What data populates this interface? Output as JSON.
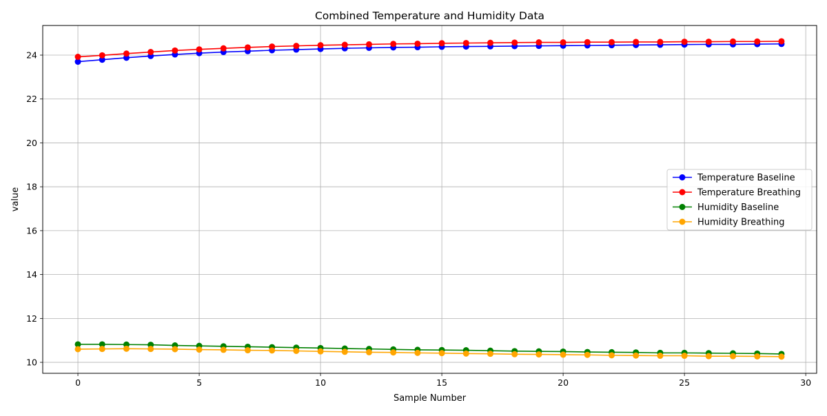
{
  "chart_data": {
    "type": "line",
    "title": "Combined Temperature and Humidity Data",
    "xlabel": "Sample Number",
    "ylabel": "value",
    "xlim": [
      -1.45,
      30.45
    ],
    "ylim": [
      9.5,
      25.35
    ],
    "xticks": [
      0,
      5,
      10,
      15,
      20,
      25,
      30
    ],
    "yticks": [
      10,
      12,
      14,
      16,
      18,
      20,
      22,
      24
    ],
    "grid": true,
    "legend_position": "center-right",
    "x": [
      0,
      1,
      2,
      3,
      4,
      5,
      6,
      7,
      8,
      9,
      10,
      11,
      12,
      13,
      14,
      15,
      16,
      17,
      18,
      19,
      20,
      21,
      22,
      23,
      24,
      25,
      26,
      27,
      28,
      29
    ],
    "series": [
      {
        "name": "Temperature Baseline",
        "color": "#0000ff",
        "values": [
          23.7,
          23.79,
          23.88,
          23.96,
          24.03,
          24.09,
          24.14,
          24.18,
          24.22,
          24.25,
          24.28,
          24.31,
          24.33,
          24.35,
          24.36,
          24.38,
          24.39,
          24.4,
          24.41,
          24.42,
          24.43,
          24.44,
          24.45,
          24.46,
          24.47,
          24.48,
          24.49,
          24.49,
          24.5,
          24.51
        ]
      },
      {
        "name": "Temperature Breathing",
        "color": "#ff0000",
        "values": [
          23.92,
          23.99,
          24.07,
          24.14,
          24.21,
          24.26,
          24.31,
          24.35,
          24.39,
          24.42,
          24.45,
          24.47,
          24.49,
          24.51,
          24.52,
          24.54,
          24.55,
          24.56,
          24.57,
          24.58,
          24.58,
          24.59,
          24.59,
          24.6,
          24.6,
          24.61,
          24.61,
          24.62,
          24.62,
          24.63
        ]
      },
      {
        "name": "Humidity Baseline",
        "color": "#008000",
        "values": [
          10.82,
          10.82,
          10.81,
          10.8,
          10.77,
          10.75,
          10.73,
          10.71,
          10.69,
          10.67,
          10.65,
          10.63,
          10.61,
          10.59,
          10.57,
          10.56,
          10.55,
          10.53,
          10.51,
          10.5,
          10.49,
          10.47,
          10.46,
          10.45,
          10.43,
          10.43,
          10.42,
          10.41,
          10.4,
          10.38
        ]
      },
      {
        "name": "Humidity Breathing",
        "color": "#ffa500",
        "values": [
          10.6,
          10.61,
          10.62,
          10.61,
          10.6,
          10.58,
          10.57,
          10.55,
          10.54,
          10.52,
          10.5,
          10.48,
          10.46,
          10.45,
          10.43,
          10.42,
          10.4,
          10.39,
          10.37,
          10.36,
          10.35,
          10.34,
          10.32,
          10.31,
          10.3,
          10.3,
          10.28,
          10.28,
          10.27,
          10.26
        ]
      }
    ]
  }
}
